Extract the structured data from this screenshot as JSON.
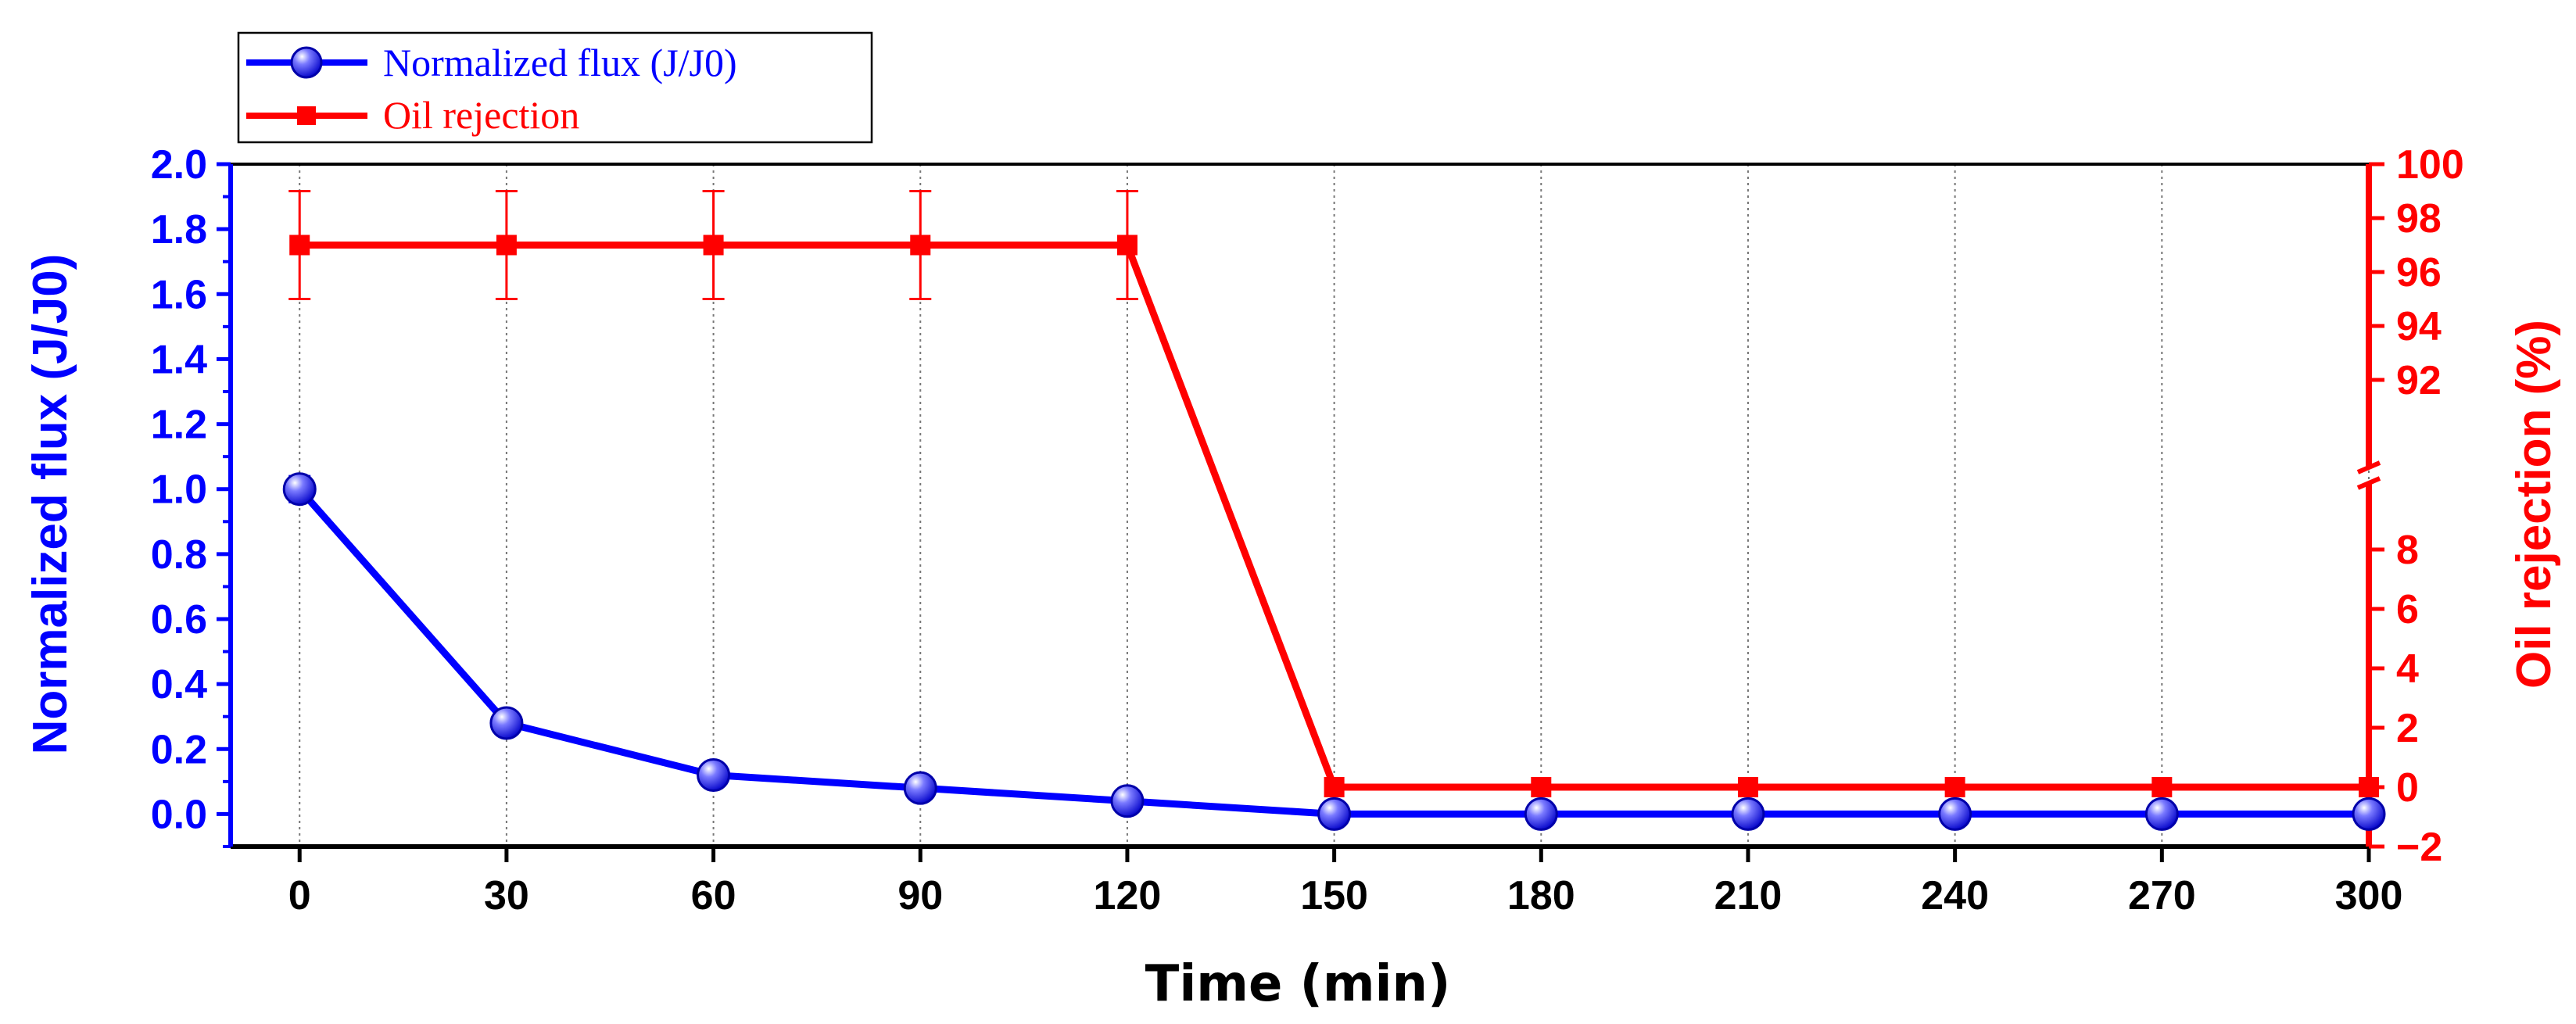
{
  "chart_data": {
    "type": "line",
    "title": "",
    "xlabel": "Time (min)",
    "x": [
      0,
      30,
      60,
      90,
      120,
      150,
      180,
      210,
      240,
      270,
      300
    ],
    "xlim": [
      -10,
      300
    ],
    "x_ticks": [
      "0",
      "30",
      "60",
      "90",
      "120",
      "150",
      "180",
      "210",
      "240",
      "270",
      "300"
    ],
    "grid": "vertical dotted at x ticks",
    "legend_position": "top-left, above plot",
    "left_axis": {
      "label": "Normalized flux (J/J0)",
      "color": "#0000ff",
      "ylim": [
        -0.1,
        2.0
      ],
      "ticks": [
        "0.0",
        "0.2",
        "0.4",
        "0.6",
        "0.8",
        "1.0",
        "1.2",
        "1.4",
        "1.6",
        "1.8",
        "2.0"
      ]
    },
    "right_axis": {
      "label": "Oil rejection (%)",
      "color": "#ff0000",
      "axis_break": "between 9 and 90",
      "lower_range": [
        -2,
        9
      ],
      "upper_range": [
        90,
        100
      ],
      "ticks_lower": [
        "−2",
        "0",
        "2",
        "4",
        "6",
        "8"
      ],
      "ticks_upper": [
        "92",
        "94",
        "96",
        "98",
        "100"
      ]
    },
    "series": [
      {
        "name": "Normalized flux (J/J0)",
        "axis": "left",
        "color": "#0000ff",
        "marker": "sphere",
        "values": [
          1.0,
          0.28,
          0.12,
          0.08,
          0.04,
          0.0,
          0.0,
          0.0,
          0.0,
          0.0,
          0.0
        ],
        "errors": [
          0.04,
          0,
          0,
          0,
          0,
          0,
          0,
          0,
          0,
          0,
          0
        ]
      },
      {
        "name": "Oil rejection",
        "axis": "right",
        "color": "#ff0000",
        "marker": "square",
        "values": [
          97,
          97,
          97,
          97,
          97,
          0,
          0,
          0,
          0,
          0,
          0
        ],
        "errors": [
          2,
          2,
          2,
          2,
          2,
          0,
          0,
          0,
          0,
          0,
          0
        ]
      }
    ]
  }
}
